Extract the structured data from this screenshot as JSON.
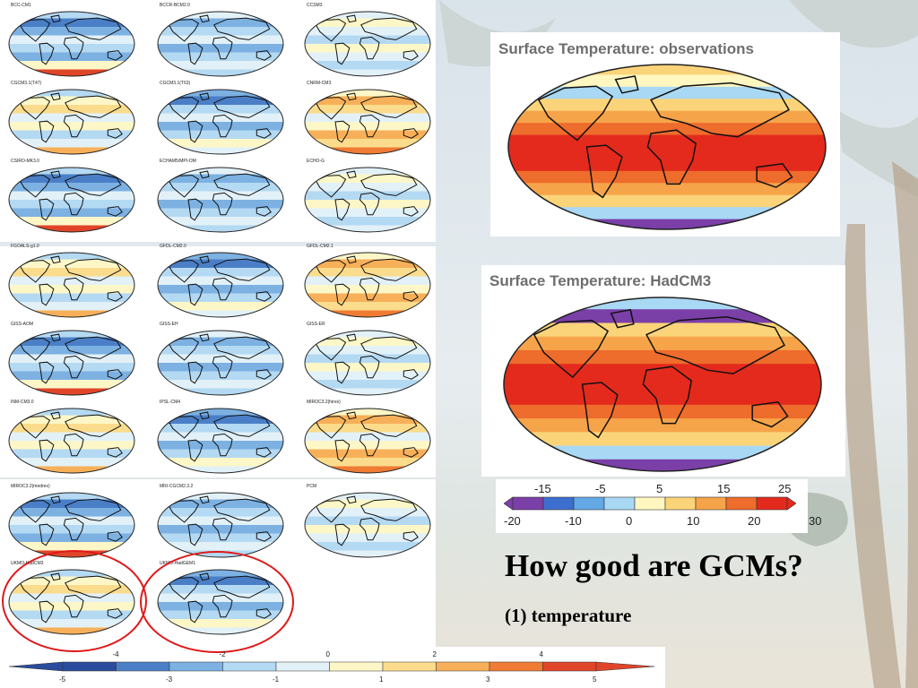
{
  "slide": {
    "heading": "How good are GCMs?",
    "subheading": "(1) temperature"
  },
  "observations_panel": {
    "title": "Surface Temperature: observations"
  },
  "hadcm3_panel": {
    "title": "Surface Temperature: HadCM3"
  },
  "model_grid": {
    "models": [
      "BCC-CM1",
      "BCCR-BCM2.0",
      "CCSM3",
      "CGCM3.1(T47)",
      "CGCM3.1(T63)",
      "CNRM-CM3",
      "CSIRO-MK3.0",
      "ECHAM5/MPI-OM",
      "ECHO-G",
      "FGOALS-g1.0",
      "GFDL-CM2.0",
      "GFDL-CM2.1",
      "GISS-AOM",
      "GISS-EH",
      "GISS-ER",
      "INM-CM3.0",
      "IPSL-CM4",
      "MIROC3.2(hires)",
      "MIROC3.2(medres)",
      "MRI-CGCM2.3.2",
      "PCM",
      "UKMO-HadCM3",
      "UKMO-HadGEM1"
    ]
  },
  "temperature_scale": {
    "top_ticks": [
      "-15",
      "-5",
      "5",
      "15",
      "25"
    ],
    "bottom_ticks": [
      "-20",
      "-10",
      "0",
      "10",
      "20",
      "30"
    ],
    "colors": [
      "#7b3fa8",
      "#3d6fcf",
      "#64a8e6",
      "#a8d8f4",
      "#fff6c0",
      "#fbd47a",
      "#f6a44a",
      "#ee6c2c",
      "#e42a1d"
    ]
  },
  "anomaly_scale": {
    "top_ticks": [
      "-4",
      "-2",
      "0",
      "2",
      "4"
    ],
    "bottom_ticks": [
      "-5",
      "-3",
      "-1",
      "1",
      "3",
      "5"
    ],
    "colors": [
      "#2a4c9c",
      "#4a7fc7",
      "#7cb1e2",
      "#b4d9f2",
      "#e2f1f8",
      "#fdf7c8",
      "#fbdc8c",
      "#f7b059",
      "#ef7b34",
      "#e0452a"
    ]
  },
  "highlight": {
    "color": "#e01818",
    "circled_models": [
      "UKMO-HadCM3",
      "UKMO-HadGEM1"
    ]
  }
}
